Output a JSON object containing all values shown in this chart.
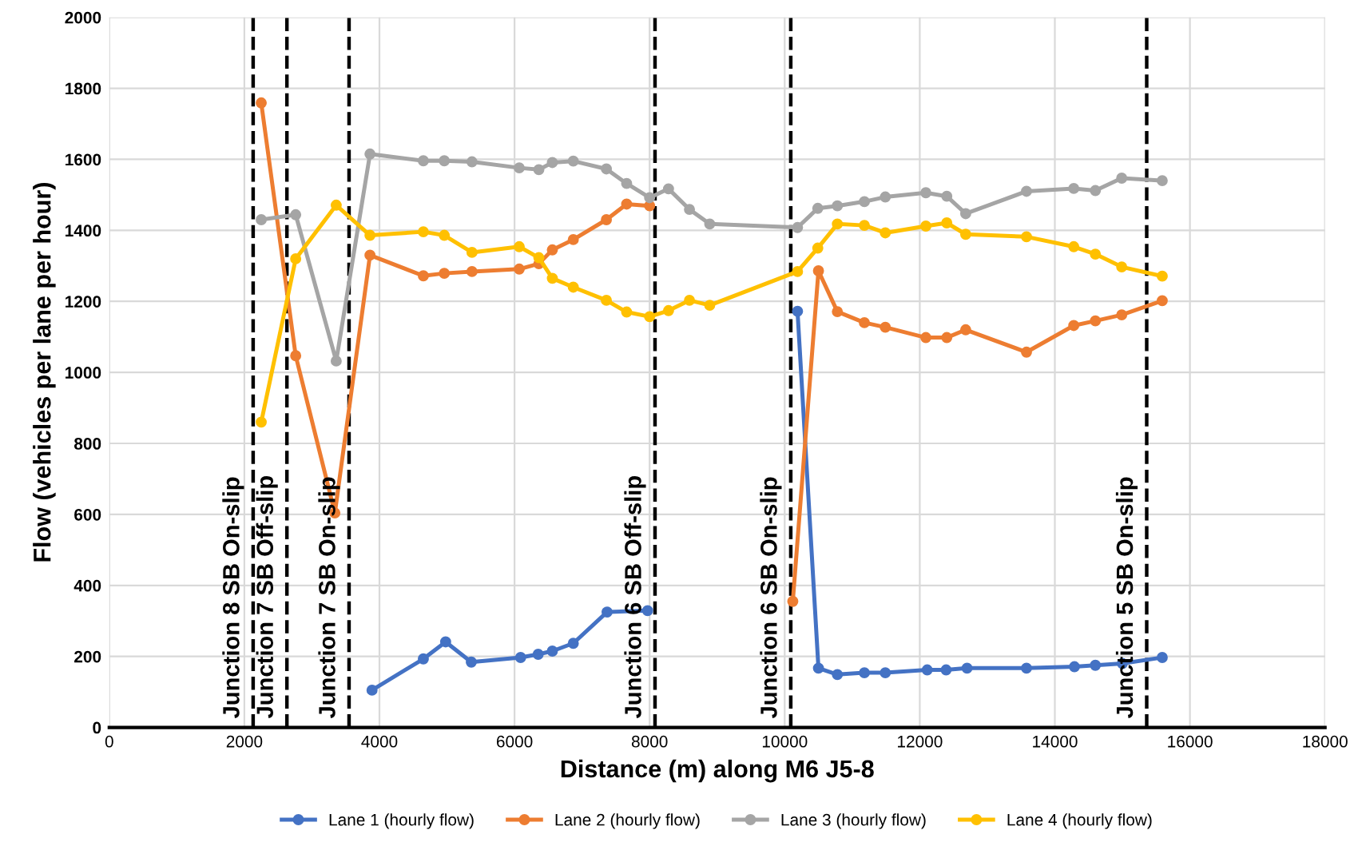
{
  "chart_data": {
    "type": "line",
    "xlabel": "Distance (m) along M6 J5-8",
    "ylabel": "Flow (vehicles per lane per hour)",
    "xlim": [
      0,
      18000
    ],
    "xticks": [
      0,
      2000,
      4000,
      6000,
      8000,
      10000,
      12000,
      14000,
      16000,
      18000
    ],
    "ylim": [
      0,
      2000
    ],
    "yticks": [
      0,
      200,
      400,
      600,
      800,
      1000,
      1200,
      1400,
      1600,
      1800,
      2000
    ],
    "grid": true,
    "legend": "bottom",
    "marker": "circle",
    "line_style": "solid",
    "series": [
      {
        "name": "Lane 1 (hourly flow)",
        "color": "#4472c4",
        "x": [
          3890,
          4650,
          4980,
          5360,
          6090,
          6350,
          6560,
          6870,
          7370,
          7970,
          9000,
          10190,
          10500,
          10780,
          11180,
          11490,
          12110,
          12390,
          12700,
          13580,
          14290,
          14600,
          15000,
          15590
        ],
        "values": [
          105,
          193,
          241,
          184,
          197,
          206,
          215,
          237,
          325,
          329,
          null,
          1172,
          167,
          149,
          154,
          154,
          162,
          162,
          167,
          167,
          171,
          175,
          180,
          197
        ]
      },
      {
        "name": "Lane 2 (hourly flow)",
        "color": "#ed7d31",
        "x": [
          2250,
          2760,
          3340,
          3860,
          4650,
          4960,
          5370,
          6070,
          6360,
          6560,
          6870,
          7360,
          7660,
          8000,
          9000,
          10120,
          10500,
          10780,
          11180,
          11490,
          12090,
          12400,
          12680,
          13580,
          14280,
          14600,
          14990,
          15590
        ],
        "values": [
          1759,
          1047,
          604,
          1330,
          1272,
          1279,
          1284,
          1291,
          1306,
          1345,
          1374,
          1430,
          1474,
          1469,
          null,
          355,
          1286,
          1171,
          1140,
          1127,
          1098,
          1098,
          1120,
          1057,
          1132,
          1145,
          1162,
          1202
        ]
      },
      {
        "name": "Lane 3 (hourly flow)",
        "color": "#a5a5a5",
        "x": [
          2250,
          2760,
          3360,
          3860,
          4650,
          4960,
          5370,
          6070,
          6360,
          6560,
          6870,
          7360,
          7660,
          8000,
          8280,
          8590,
          8890,
          10190,
          10490,
          10780,
          11180,
          11490,
          12090,
          12400,
          12680,
          13580,
          14280,
          14600,
          14990,
          15590
        ],
        "values": [
          1430,
          1444,
          1032,
          1615,
          1596,
          1596,
          1593,
          1576,
          1571,
          1591,
          1595,
          1573,
          1532,
          1492,
          1517,
          1459,
          1418,
          1408,
          1462,
          1469,
          1481,
          1494,
          1506,
          1496,
          1447,
          1510,
          1518,
          1512,
          1547,
          1540
        ]
      },
      {
        "name": "Lane 4 (hourly flow)",
        "color": "#ffc000",
        "x": [
          2250,
          2760,
          3360,
          3860,
          4650,
          4960,
          5370,
          6070,
          6360,
          6560,
          6870,
          7360,
          7660,
          8000,
          8280,
          8590,
          8890,
          10190,
          10490,
          10780,
          11180,
          11490,
          12090,
          12400,
          12680,
          13580,
          14280,
          14600,
          14990,
          15590
        ],
        "values": [
          860,
          1320,
          1471,
          1386,
          1396,
          1386,
          1338,
          1354,
          1323,
          1265,
          1240,
          1203,
          1170,
          1157,
          1174,
          1203,
          1189,
          1284,
          1350,
          1418,
          1414,
          1393,
          1412,
          1421,
          1389,
          1382,
          1354,
          1333,
          1297,
          1271
        ]
      }
    ],
    "ref_lines": [
      {
        "axis": "x",
        "value": 2130,
        "label": "Junction 8 SB On-slip",
        "color": "#000000",
        "line_style": "dashed"
      },
      {
        "axis": "x",
        "value": 2630,
        "label": "Junction 7 SB Off-slip",
        "color": "#000000",
        "line_style": "dashed"
      },
      {
        "axis": "x",
        "value": 3550,
        "label": "Junction 7 SB On-slip",
        "color": "#000000",
        "line_style": "dashed"
      },
      {
        "axis": "x",
        "value": 8080,
        "label": "Junction 6 SB Off-slip",
        "color": "#000000",
        "line_style": "dashed"
      },
      {
        "axis": "x",
        "value": 10090,
        "label": "Junction 6 SB On-slip",
        "color": "#000000",
        "line_style": "dashed"
      },
      {
        "axis": "x",
        "value": 15360,
        "label": "Junction 5 SB On-slip",
        "color": "#000000",
        "line_style": "dashed"
      }
    ]
  }
}
